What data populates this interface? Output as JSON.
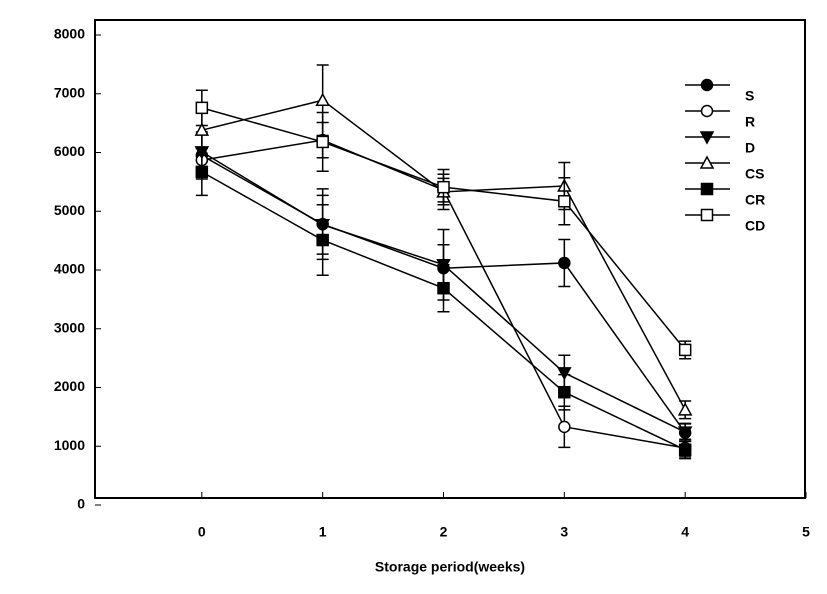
{
  "chart_data": {
    "type": "line",
    "xlabel": "Storage period(weeks)",
    "x": [
      0,
      1,
      2,
      3,
      4
    ],
    "xlim": [
      -1,
      5
    ],
    "xticks": [
      0,
      1,
      2,
      3,
      4,
      5
    ],
    "ylim": [
      0,
      8000
    ],
    "yticks": [
      0,
      1000,
      2000,
      3000,
      4000,
      5000,
      6000,
      7000,
      8000
    ],
    "legend": "right",
    "series": [
      {
        "name": "S",
        "color": "#000000",
        "marker": "circle",
        "filled": true,
        "values": [
          5950,
          4780,
          4030,
          4120,
          1230
        ],
        "errors": [
          400,
          600,
          400,
          400,
          150
        ]
      },
      {
        "name": "R",
        "color": "#000000",
        "marker": "circle",
        "filled": false,
        "values": [
          5870,
          6210,
          5360,
          1330,
          970
        ],
        "errors": [
          200,
          300,
          200,
          350,
          150
        ]
      },
      {
        "name": "D",
        "color": "#000000",
        "marker": "triangle-down",
        "filled": true,
        "values": [
          6010,
          4770,
          4090,
          2250,
          1240
        ],
        "errors": [
          300,
          500,
          600,
          300,
          150
        ]
      },
      {
        "name": "CS",
        "color": "#000000",
        "marker": "triangle-up",
        "filled": false,
        "values": [
          6380,
          6890,
          5330,
          5430,
          1620
        ],
        "errors": [
          300,
          600,
          300,
          400,
          150
        ]
      },
      {
        "name": "CR",
        "color": "#000000",
        "marker": "square",
        "filled": true,
        "values": [
          5670,
          4510,
          3690,
          1920,
          940
        ],
        "errors": [
          400,
          600,
          400,
          300,
          150
        ]
      },
      {
        "name": "CD",
        "color": "#000000",
        "marker": "square",
        "filled": false,
        "values": [
          6760,
          6180,
          5410,
          5170,
          2640
        ],
        "errors": [
          300,
          500,
          300,
          400,
          150
        ]
      }
    ]
  }
}
